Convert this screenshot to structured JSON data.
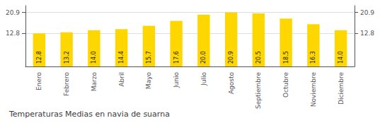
{
  "chart_data": {
    "type": "bar",
    "title": "Temperaturas Medias en navia de suarna",
    "categories": [
      "Enero",
      "Febrero",
      "Marzo",
      "Abril",
      "Mayo",
      "Junio",
      "Julio",
      "Agosto",
      "Septiembre",
      "Octubre",
      "Noviembre",
      "Diciembre"
    ],
    "values": [
      12.8,
      13.2,
      14.0,
      14.4,
      15.7,
      17.6,
      20.0,
      20.9,
      20.5,
      18.5,
      16.3,
      14.0
    ],
    "value_labels": [
      "12.8",
      "13.2",
      "14.0",
      "14.4",
      "15.7",
      "17.6",
      "20.0",
      "20.9",
      "20.5",
      "18.5",
      "16.3",
      "14.0"
    ],
    "color": "#FFD700",
    "ylim": [
      0,
      23.5
    ],
    "yticks": [
      12.8,
      20.9
    ],
    "grid": true,
    "data_labels": true
  }
}
